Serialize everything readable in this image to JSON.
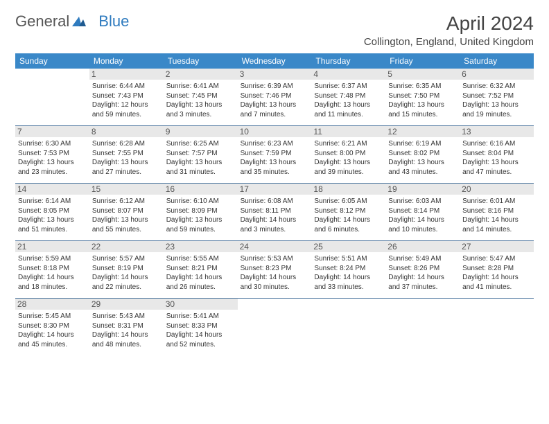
{
  "brand": {
    "word1": "General",
    "word2": "Blue"
  },
  "title": "April 2024",
  "location": "Collington, England, United Kingdom",
  "colors": {
    "header_bg": "#3a88c8",
    "header_text": "#ffffff",
    "daynum_bg": "#e8e8e8",
    "week_divider": "#5078a0",
    "body_text": "#333333",
    "brand_blue": "#2f7bbf"
  },
  "dow": [
    "Sunday",
    "Monday",
    "Tuesday",
    "Wednesday",
    "Thursday",
    "Friday",
    "Saturday"
  ],
  "weeks": [
    [
      null,
      {
        "n": "1",
        "sr": "Sunrise: 6:44 AM",
        "ss": "Sunset: 7:43 PM",
        "d1": "Daylight: 12 hours",
        "d2": "and 59 minutes."
      },
      {
        "n": "2",
        "sr": "Sunrise: 6:41 AM",
        "ss": "Sunset: 7:45 PM",
        "d1": "Daylight: 13 hours",
        "d2": "and 3 minutes."
      },
      {
        "n": "3",
        "sr": "Sunrise: 6:39 AM",
        "ss": "Sunset: 7:46 PM",
        "d1": "Daylight: 13 hours",
        "d2": "and 7 minutes."
      },
      {
        "n": "4",
        "sr": "Sunrise: 6:37 AM",
        "ss": "Sunset: 7:48 PM",
        "d1": "Daylight: 13 hours",
        "d2": "and 11 minutes."
      },
      {
        "n": "5",
        "sr": "Sunrise: 6:35 AM",
        "ss": "Sunset: 7:50 PM",
        "d1": "Daylight: 13 hours",
        "d2": "and 15 minutes."
      },
      {
        "n": "6",
        "sr": "Sunrise: 6:32 AM",
        "ss": "Sunset: 7:52 PM",
        "d1": "Daylight: 13 hours",
        "d2": "and 19 minutes."
      }
    ],
    [
      {
        "n": "7",
        "sr": "Sunrise: 6:30 AM",
        "ss": "Sunset: 7:53 PM",
        "d1": "Daylight: 13 hours",
        "d2": "and 23 minutes."
      },
      {
        "n": "8",
        "sr": "Sunrise: 6:28 AM",
        "ss": "Sunset: 7:55 PM",
        "d1": "Daylight: 13 hours",
        "d2": "and 27 minutes."
      },
      {
        "n": "9",
        "sr": "Sunrise: 6:25 AM",
        "ss": "Sunset: 7:57 PM",
        "d1": "Daylight: 13 hours",
        "d2": "and 31 minutes."
      },
      {
        "n": "10",
        "sr": "Sunrise: 6:23 AM",
        "ss": "Sunset: 7:59 PM",
        "d1": "Daylight: 13 hours",
        "d2": "and 35 minutes."
      },
      {
        "n": "11",
        "sr": "Sunrise: 6:21 AM",
        "ss": "Sunset: 8:00 PM",
        "d1": "Daylight: 13 hours",
        "d2": "and 39 minutes."
      },
      {
        "n": "12",
        "sr": "Sunrise: 6:19 AM",
        "ss": "Sunset: 8:02 PM",
        "d1": "Daylight: 13 hours",
        "d2": "and 43 minutes."
      },
      {
        "n": "13",
        "sr": "Sunrise: 6:16 AM",
        "ss": "Sunset: 8:04 PM",
        "d1": "Daylight: 13 hours",
        "d2": "and 47 minutes."
      }
    ],
    [
      {
        "n": "14",
        "sr": "Sunrise: 6:14 AM",
        "ss": "Sunset: 8:05 PM",
        "d1": "Daylight: 13 hours",
        "d2": "and 51 minutes."
      },
      {
        "n": "15",
        "sr": "Sunrise: 6:12 AM",
        "ss": "Sunset: 8:07 PM",
        "d1": "Daylight: 13 hours",
        "d2": "and 55 minutes."
      },
      {
        "n": "16",
        "sr": "Sunrise: 6:10 AM",
        "ss": "Sunset: 8:09 PM",
        "d1": "Daylight: 13 hours",
        "d2": "and 59 minutes."
      },
      {
        "n": "17",
        "sr": "Sunrise: 6:08 AM",
        "ss": "Sunset: 8:11 PM",
        "d1": "Daylight: 14 hours",
        "d2": "and 3 minutes."
      },
      {
        "n": "18",
        "sr": "Sunrise: 6:05 AM",
        "ss": "Sunset: 8:12 PM",
        "d1": "Daylight: 14 hours",
        "d2": "and 6 minutes."
      },
      {
        "n": "19",
        "sr": "Sunrise: 6:03 AM",
        "ss": "Sunset: 8:14 PM",
        "d1": "Daylight: 14 hours",
        "d2": "and 10 minutes."
      },
      {
        "n": "20",
        "sr": "Sunrise: 6:01 AM",
        "ss": "Sunset: 8:16 PM",
        "d1": "Daylight: 14 hours",
        "d2": "and 14 minutes."
      }
    ],
    [
      {
        "n": "21",
        "sr": "Sunrise: 5:59 AM",
        "ss": "Sunset: 8:18 PM",
        "d1": "Daylight: 14 hours",
        "d2": "and 18 minutes."
      },
      {
        "n": "22",
        "sr": "Sunrise: 5:57 AM",
        "ss": "Sunset: 8:19 PM",
        "d1": "Daylight: 14 hours",
        "d2": "and 22 minutes."
      },
      {
        "n": "23",
        "sr": "Sunrise: 5:55 AM",
        "ss": "Sunset: 8:21 PM",
        "d1": "Daylight: 14 hours",
        "d2": "and 26 minutes."
      },
      {
        "n": "24",
        "sr": "Sunrise: 5:53 AM",
        "ss": "Sunset: 8:23 PM",
        "d1": "Daylight: 14 hours",
        "d2": "and 30 minutes."
      },
      {
        "n": "25",
        "sr": "Sunrise: 5:51 AM",
        "ss": "Sunset: 8:24 PM",
        "d1": "Daylight: 14 hours",
        "d2": "and 33 minutes."
      },
      {
        "n": "26",
        "sr": "Sunrise: 5:49 AM",
        "ss": "Sunset: 8:26 PM",
        "d1": "Daylight: 14 hours",
        "d2": "and 37 minutes."
      },
      {
        "n": "27",
        "sr": "Sunrise: 5:47 AM",
        "ss": "Sunset: 8:28 PM",
        "d1": "Daylight: 14 hours",
        "d2": "and 41 minutes."
      }
    ],
    [
      {
        "n": "28",
        "sr": "Sunrise: 5:45 AM",
        "ss": "Sunset: 8:30 PM",
        "d1": "Daylight: 14 hours",
        "d2": "and 45 minutes."
      },
      {
        "n": "29",
        "sr": "Sunrise: 5:43 AM",
        "ss": "Sunset: 8:31 PM",
        "d1": "Daylight: 14 hours",
        "d2": "and 48 minutes."
      },
      {
        "n": "30",
        "sr": "Sunrise: 5:41 AM",
        "ss": "Sunset: 8:33 PM",
        "d1": "Daylight: 14 hours",
        "d2": "and 52 minutes."
      },
      null,
      null,
      null,
      null
    ]
  ]
}
